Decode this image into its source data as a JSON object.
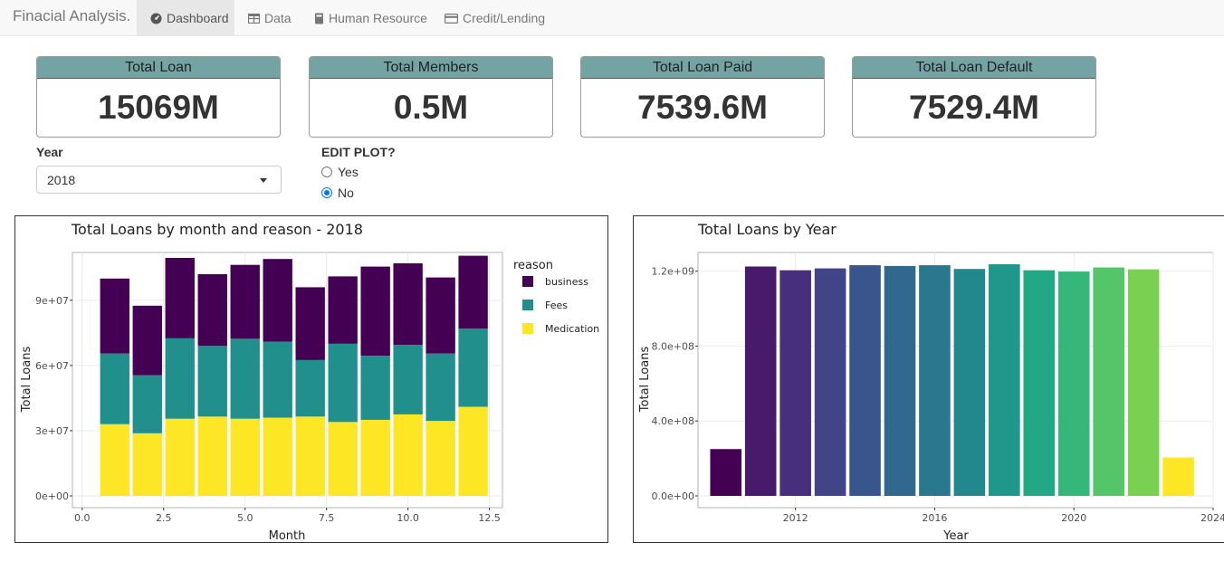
{
  "navbar": {
    "brand": "Finacial Analysis.",
    "tabs": [
      {
        "label": "Dashboard",
        "icon": "dashboard-icon",
        "active": true
      },
      {
        "label": "Data",
        "icon": "table-icon",
        "active": false
      },
      {
        "label": "Human Resource",
        "icon": "book-icon",
        "active": false
      },
      {
        "label": "Credit/Lending",
        "icon": "credit-card-icon",
        "active": false
      }
    ]
  },
  "value_boxes": [
    {
      "title": "Total Loan",
      "value": "15069M"
    },
    {
      "title": "Total Members",
      "value": "0.5M"
    },
    {
      "title": "Total Loan Paid",
      "value": "7539.6M"
    },
    {
      "title": "Total Loan Default",
      "value": "7529.4M"
    }
  ],
  "controls": {
    "year_label": "Year",
    "year_selected": "2018",
    "edit_label": "EDIT PLOT?",
    "edit_options": [
      {
        "label": "Yes",
        "checked": false
      },
      {
        "label": "No",
        "checked": true
      }
    ]
  },
  "colors": {
    "header_teal": "#73a3a3",
    "business": "#440154",
    "fees": "#21908d",
    "medication": "#fde725"
  },
  "chart_data": [
    {
      "type": "bar",
      "stacked": true,
      "title": "Total Loans by month and reason - 2018",
      "xlabel": "Month",
      "ylabel": "Total Loans",
      "x": [
        1,
        2,
        3,
        4,
        5,
        6,
        7,
        8,
        9,
        10,
        11,
        12
      ],
      "xlim": [
        0,
        12.5
      ],
      "xticks": [
        "0.0",
        "2.5",
        "5.0",
        "7.5",
        "10.0",
        "12.5"
      ],
      "ylim": [
        0,
        112000000
      ],
      "yticks": [
        "0e+00",
        "3e+07",
        "6e+07",
        "9e+07"
      ],
      "legend_title": "reason",
      "legend_position": "right",
      "series": [
        {
          "name": "Medication",
          "color": "#fde725",
          "values": [
            33000000,
            28800000,
            35500000,
            36500000,
            35500000,
            36000000,
            36500000,
            34000000,
            35000000,
            37500000,
            34500000,
            41000000
          ]
        },
        {
          "name": "Fees",
          "color": "#21908d",
          "values": [
            32500000,
            26700000,
            37000000,
            32500000,
            36800000,
            35000000,
            26000000,
            36000000,
            29500000,
            32000000,
            31000000,
            36000000
          ]
        },
        {
          "name": "business",
          "color": "#440154",
          "values": [
            34500000,
            32000000,
            37000000,
            33000000,
            34000000,
            38000000,
            33500000,
            31000000,
            41000000,
            37500000,
            35000000,
            33500000
          ]
        }
      ],
      "legend_order": [
        "business",
        "Fees",
        "Medication"
      ]
    },
    {
      "type": "bar",
      "title": "Total Loans by Year",
      "xlabel": "Year",
      "ylabel": "Total Loans",
      "x": [
        2010,
        2011,
        2012,
        2013,
        2014,
        2015,
        2016,
        2017,
        2018,
        2019,
        2020,
        2021,
        2022,
        2023
      ],
      "values": [
        250000000,
        1225000000,
        1205000000,
        1215000000,
        1232000000,
        1228000000,
        1232000000,
        1212000000,
        1237000000,
        1205000000,
        1198000000,
        1220000000,
        1210000000,
        205000000
      ],
      "colors": [
        "#440154",
        "#481a6c",
        "#472f7d",
        "#414487",
        "#39568c",
        "#31688e",
        "#2a788e",
        "#23888e",
        "#1f988b",
        "#22a884",
        "#35b779",
        "#54c568",
        "#7ad151",
        "#c2df23"
      ],
      "last_color": "#fde725",
      "xlim": [
        2009.2,
        2024
      ],
      "xticks": [
        "2012",
        "2016",
        "2020",
        "2024"
      ],
      "ylim": [
        0,
        1300000000
      ],
      "yticks": [
        "0.0e+00",
        "4.0e+08",
        "8.0e+08",
        "1.2e+09"
      ]
    }
  ]
}
